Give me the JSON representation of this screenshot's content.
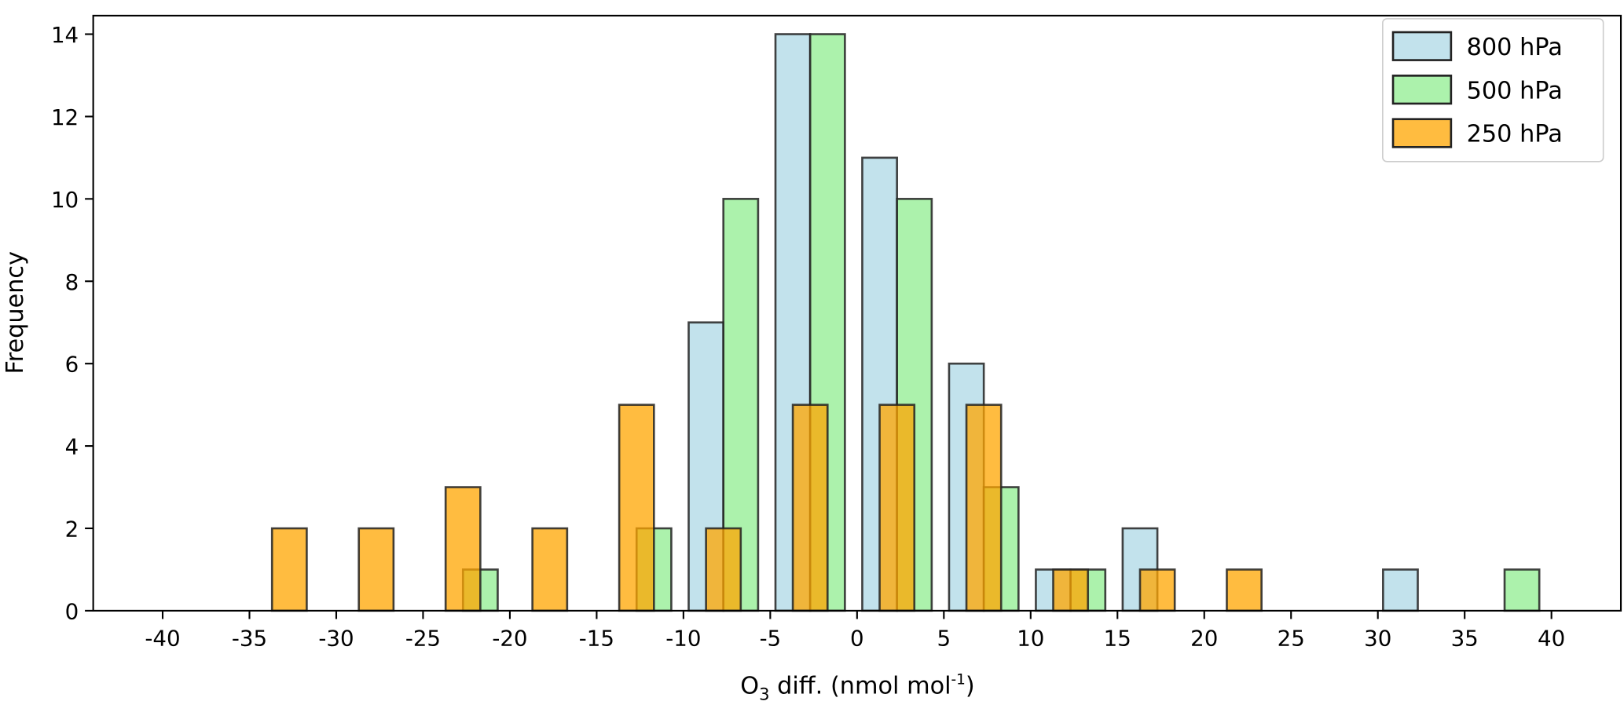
{
  "chart_data": {
    "type": "bar",
    "xlabel": "O3 diff. (nmol mol-1)",
    "xlabel_parts": {
      "a": "O",
      "sub": "3",
      "b": " diff. (nmol mol",
      "sup": "-1",
      "c": ")"
    },
    "ylabel": "Frequency",
    "xlim": [
      -44,
      44
    ],
    "ylim": [
      0,
      14.45
    ],
    "xticks": [
      -40,
      -35,
      -30,
      -25,
      -20,
      -15,
      -10,
      -5,
      0,
      5,
      10,
      15,
      20,
      25,
      30,
      35,
      40
    ],
    "yticks": [
      0,
      2,
      4,
      6,
      8,
      10,
      12,
      14
    ],
    "grid": false,
    "legend_position": "top-right",
    "bin_starts": [
      -40,
      -35,
      -30,
      -25,
      -20,
      -15,
      -10,
      -5,
      0,
      5,
      10,
      15,
      20,
      25,
      30,
      35
    ],
    "bin_width": 5,
    "series": [
      {
        "name": "800 hPa",
        "color": "#add8e6",
        "values": [
          0,
          0,
          0,
          0,
          0,
          0,
          7,
          14,
          11,
          6,
          1,
          2,
          0,
          0,
          1,
          0
        ]
      },
      {
        "name": "500 hPa",
        "color": "#90ee90",
        "values": [
          0,
          0,
          0,
          1,
          0,
          2,
          10,
          14,
          10,
          3,
          1,
          0,
          0,
          0,
          0,
          1
        ]
      },
      {
        "name": "250 hPa",
        "color": "#ffa500",
        "values": [
          0,
          2,
          2,
          3,
          2,
          5,
          2,
          5,
          5,
          5,
          1,
          1,
          1,
          0,
          0,
          0
        ]
      }
    ],
    "edge_color": "#222222"
  }
}
